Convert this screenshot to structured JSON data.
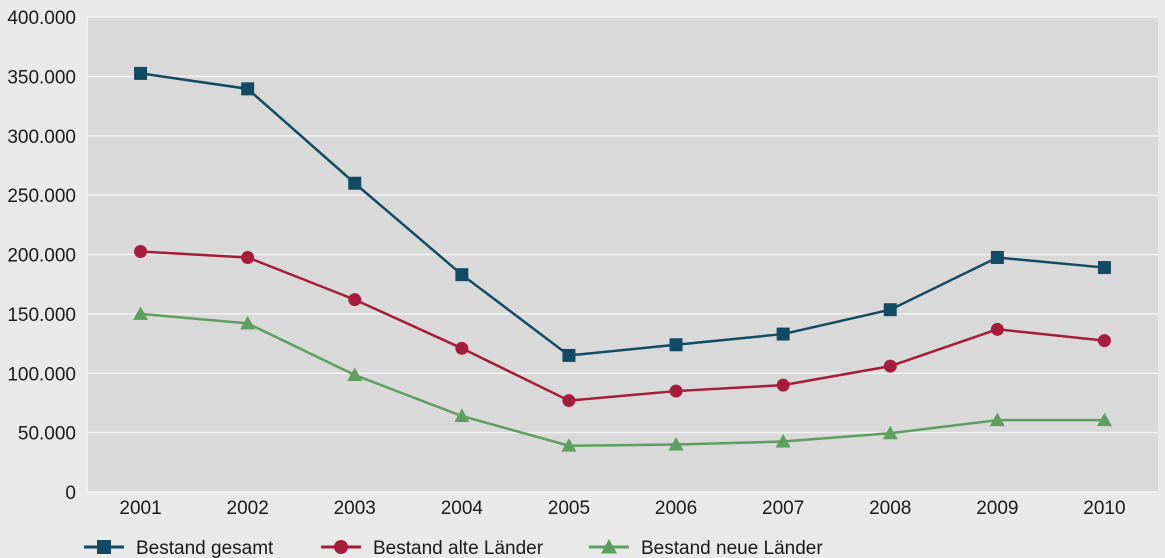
{
  "chart_data": {
    "type": "line",
    "title": "",
    "xlabel": "",
    "ylabel": "",
    "categories": [
      "2001",
      "2002",
      "2003",
      "2004",
      "2005",
      "2006",
      "2007",
      "2008",
      "2009",
      "2010"
    ],
    "ylim": [
      0,
      400000
    ],
    "yticks": [
      {
        "value": 0,
        "label": "0"
      },
      {
        "value": 50000,
        "label": "50.000"
      },
      {
        "value": 100000,
        "label": "100.000"
      },
      {
        "value": 150000,
        "label": "150.000"
      },
      {
        "value": 200000,
        "label": "200.000"
      },
      {
        "value": 250000,
        "label": "250.000"
      },
      {
        "value": 300000,
        "label": "300.000"
      },
      {
        "value": 350000,
        "label": "350.000"
      },
      {
        "value": 400000,
        "label": "400.000"
      }
    ],
    "grid": true,
    "legend_position": "bottom-left",
    "series": [
      {
        "name": "Bestand gesamt",
        "color": "#124a63",
        "marker": "square",
        "values": [
          352500,
          339500,
          260000,
          183000,
          115000,
          124000,
          133000,
          153500,
          197500,
          189000
        ]
      },
      {
        "name": "Bestand alte Länder",
        "color": "#a51c3c",
        "marker": "circle",
        "values": [
          202500,
          197500,
          162000,
          121000,
          77000,
          85000,
          90000,
          106000,
          137000,
          127500
        ]
      },
      {
        "name": "Bestand neue Länder",
        "color": "#5e9e5e",
        "marker": "triangle",
        "values": [
          150000,
          142000,
          98500,
          64000,
          39000,
          40000,
          42500,
          49500,
          60500,
          60500
        ]
      }
    ]
  }
}
